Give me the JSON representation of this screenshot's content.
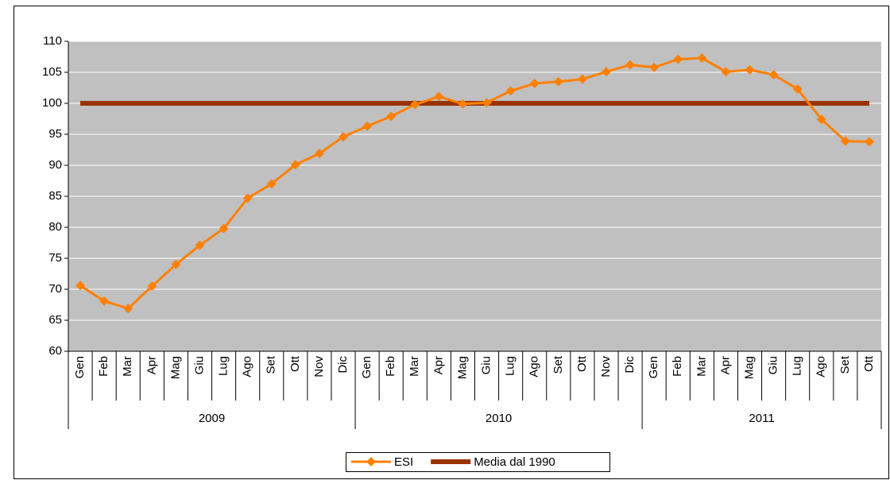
{
  "chart_data": {
    "type": "line",
    "categories": [
      "Gen",
      "Feb",
      "Mar",
      "Apr",
      "Mag",
      "Giu",
      "Lug",
      "Ago",
      "Set",
      "Ott",
      "Nov",
      "Dic",
      "Gen",
      "Feb",
      "Mar",
      "Apr",
      "Mag",
      "Giu",
      "Lug",
      "Ago",
      "Set",
      "Ott",
      "Nov",
      "Dic",
      "Gen",
      "Feb",
      "Mar",
      "Apr",
      "Mag",
      "Giu",
      "Lug",
      "Ago",
      "Set",
      "Ott"
    ],
    "groups": [
      "2009",
      "2010",
      "2011"
    ],
    "series": [
      {
        "name": "ESI",
        "color": "#ff8000",
        "marker": "diamond",
        "values": [
          70.6,
          68.1,
          66.9,
          70.5,
          74.0,
          77.1,
          79.8,
          84.7,
          87.0,
          90.1,
          91.9,
          94.6,
          96.3,
          97.9,
          99.8,
          101.1,
          99.9,
          100.1,
          102.0,
          103.2,
          103.5,
          103.9,
          105.1,
          106.2,
          105.8,
          107.1,
          107.3,
          105.1,
          105.4,
          104.6,
          102.3,
          97.4,
          93.9,
          93.8
        ]
      },
      {
        "name": "Media dal 1990",
        "color": "#993300",
        "marker": "none",
        "values": [
          100,
          100,
          100,
          100,
          100,
          100,
          100,
          100,
          100,
          100,
          100,
          100,
          100,
          100,
          100,
          100,
          100,
          100,
          100,
          100,
          100,
          100,
          100,
          100,
          100,
          100,
          100,
          100,
          100,
          100,
          100,
          100,
          100,
          100
        ]
      }
    ],
    "ylim": [
      60,
      110
    ],
    "yticks": [
      60,
      65,
      70,
      75,
      80,
      85,
      90,
      95,
      100,
      105,
      110
    ],
    "grid": true,
    "plot_color": "#c0c0c0",
    "legend": "bottom"
  }
}
